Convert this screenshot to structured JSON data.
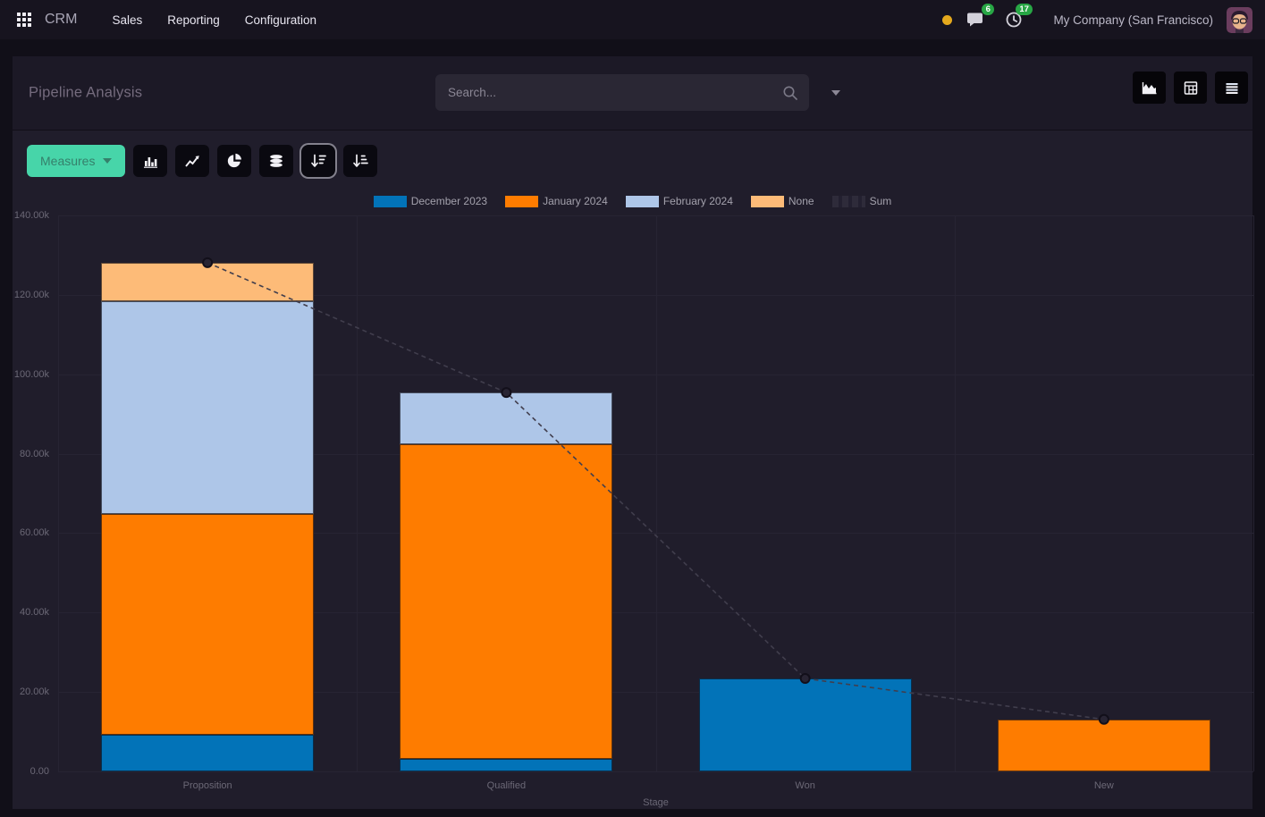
{
  "navbar": {
    "app_name": "CRM",
    "menus": [
      "Sales",
      "Reporting",
      "Configuration"
    ],
    "messages_badge": "6",
    "activities_badge": "17",
    "company": "My Company (San Francisco)"
  },
  "control_panel": {
    "title": "Pipeline Analysis",
    "search_placeholder": "Search..."
  },
  "toolbar": {
    "measures_label": "Measures"
  },
  "colors": {
    "accent_teal": "#47d5a9",
    "accent_teal_text": "#35806b",
    "badge_green": "#28a745",
    "status_yellow": "#e5a91d",
    "sum_line": "#413e4d",
    "sum_dot_fill": "#282433",
    "sum_dot_stroke": "#120f1a"
  },
  "chart_data": {
    "type": "bar",
    "stacked": true,
    "title": "",
    "xlabel": "Stage",
    "ylabel": "",
    "categories": [
      "Proposition",
      "Qualified",
      "Won",
      "New"
    ],
    "series": [
      {
        "name": "December 2023",
        "color": "#0273b8",
        "values": [
          9200,
          3200,
          23400,
          0
        ]
      },
      {
        "name": "January 2024",
        "color": "#fe7c00",
        "values": [
          55600,
          79200,
          0,
          13100
        ]
      },
      {
        "name": "February 2024",
        "color": "#aec6e8",
        "values": [
          53500,
          13000,
          0,
          0
        ]
      },
      {
        "name": "None",
        "color": "#fdbb78",
        "values": [
          9800,
          0,
          0,
          0
        ]
      }
    ],
    "line_series": {
      "name": "Sum",
      "values": [
        128100,
        95400,
        23400,
        13100
      ]
    },
    "y_ticks": [
      "140.00k",
      "120.00k",
      "100.00k",
      "80.00k",
      "60.00k",
      "40.00k",
      "20.00k",
      "0.00"
    ],
    "ylim": [
      0,
      140000
    ],
    "grid": true,
    "legend_position": "top"
  }
}
